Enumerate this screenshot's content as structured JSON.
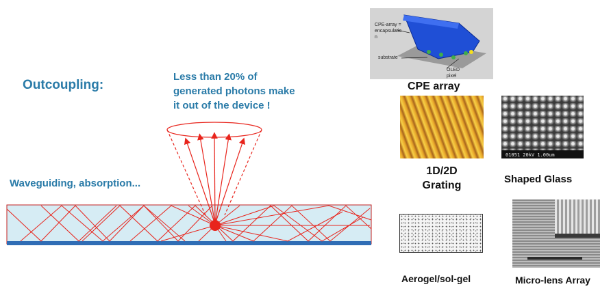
{
  "main": {
    "title": "Outcoupling:",
    "note": "Less than 20% of\ngenerated photons make\nit out of  the device !",
    "waveguide_label": "Waveguiding, absorption..."
  },
  "panels": {
    "cpe": {
      "label": "CPE array",
      "callout_array": "CPE-array =\nencapsulatio\nn",
      "callout_substrate": "substrate",
      "callout_pixel": "OLED\npixel"
    },
    "grating": {
      "label": "1D/2D\nGrating"
    },
    "shaped_glass": {
      "label": "Shaped Glass",
      "sem_caption": "01051  20kV        1.00um"
    },
    "aerogel": {
      "label": "Aerogel/sol-gel"
    },
    "microlens": {
      "label": "Micro-lens Array"
    }
  },
  "colors": {
    "accent_text": "#2a7ba8",
    "ray": "#e8241c",
    "device_fill": "#d6ecf4",
    "electrode": "#2f6db5",
    "cpe_blue": "#1f4fd6"
  }
}
